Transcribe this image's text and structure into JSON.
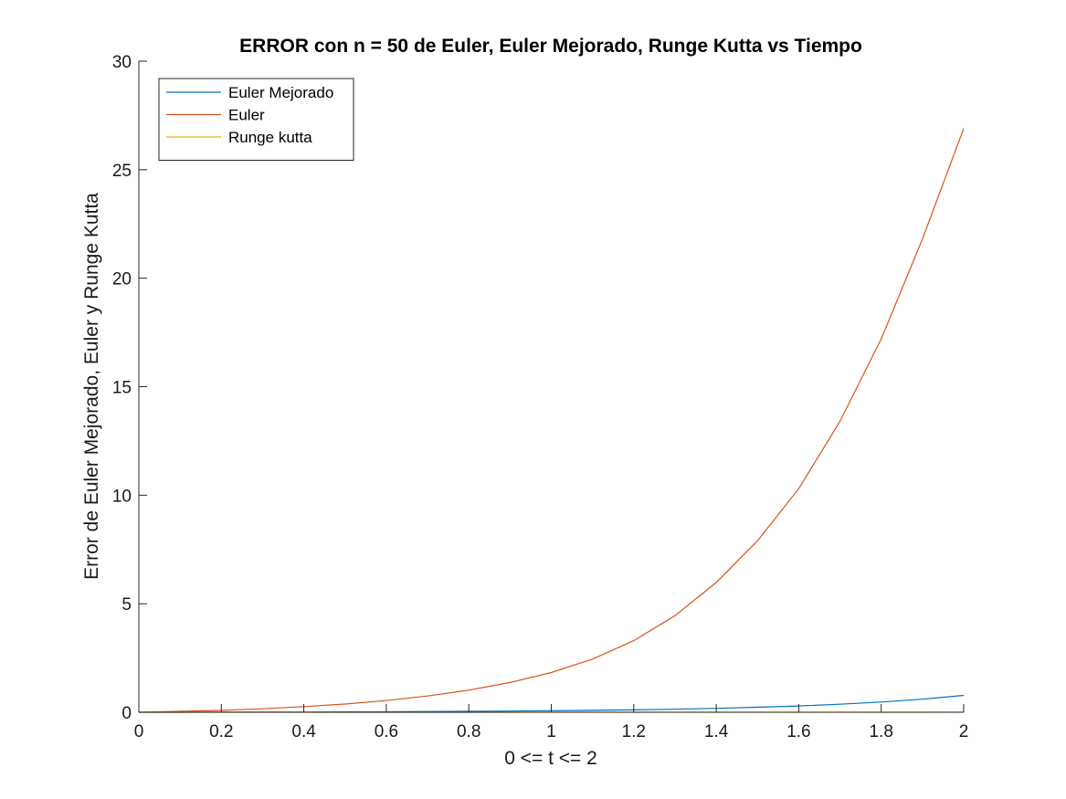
{
  "chart_data": {
    "type": "line",
    "title": "ERROR con n = 50 de Euler, Euler Mejorado, Runge Kutta vs Tiempo",
    "xlabel": "0 <= t <= 2",
    "ylabel": "Error de Euler Mejorado, Euler y Runge Kutta",
    "xlim": [
      0,
      2
    ],
    "ylim": [
      0,
      30
    ],
    "xticks": [
      0,
      0.2,
      0.4,
      0.6,
      0.8,
      1,
      1.2,
      1.4,
      1.6,
      1.8,
      2
    ],
    "xtick_labels": [
      "0",
      "0.2",
      "0.4",
      "0.6",
      "0.8",
      "1",
      "1.2",
      "1.4",
      "1.6",
      "1.8",
      "2"
    ],
    "yticks": [
      0,
      5,
      10,
      15,
      20,
      25,
      30
    ],
    "ytick_labels": [
      "0",
      "5",
      "10",
      "15",
      "20",
      "25",
      "30"
    ],
    "grid": false,
    "legend_position": "top-left",
    "x": [
      0,
      0.1,
      0.2,
      0.3,
      0.4,
      0.5,
      0.6,
      0.7,
      0.8,
      0.9,
      1.0,
      1.1,
      1.2,
      1.3,
      1.4,
      1.5,
      1.6,
      1.7,
      1.8,
      1.9,
      2.0
    ],
    "series": [
      {
        "name": "Euler Mejorado",
        "color": "#0072BD",
        "values": [
          0,
          0.001,
          0.003,
          0.006,
          0.01,
          0.016,
          0.023,
          0.032,
          0.043,
          0.056,
          0.07,
          0.09,
          0.11,
          0.14,
          0.18,
          0.23,
          0.29,
          0.37,
          0.47,
          0.6,
          0.78
        ]
      },
      {
        "name": "Euler",
        "color": "#D95319",
        "values": [
          0,
          0.04,
          0.09,
          0.16,
          0.26,
          0.38,
          0.54,
          0.75,
          1.02,
          1.37,
          1.83,
          2.45,
          3.3,
          4.45,
          5.98,
          7.9,
          10.3,
          13.4,
          17.2,
          21.8,
          26.9
        ]
      },
      {
        "name": "Runge kutta",
        "color": "#EDB120",
        "values": [
          0,
          0,
          0,
          0,
          0,
          0,
          0,
          0,
          0,
          0,
          0,
          0,
          0,
          0,
          0,
          0,
          0,
          0,
          0,
          0,
          0.01
        ]
      }
    ]
  }
}
